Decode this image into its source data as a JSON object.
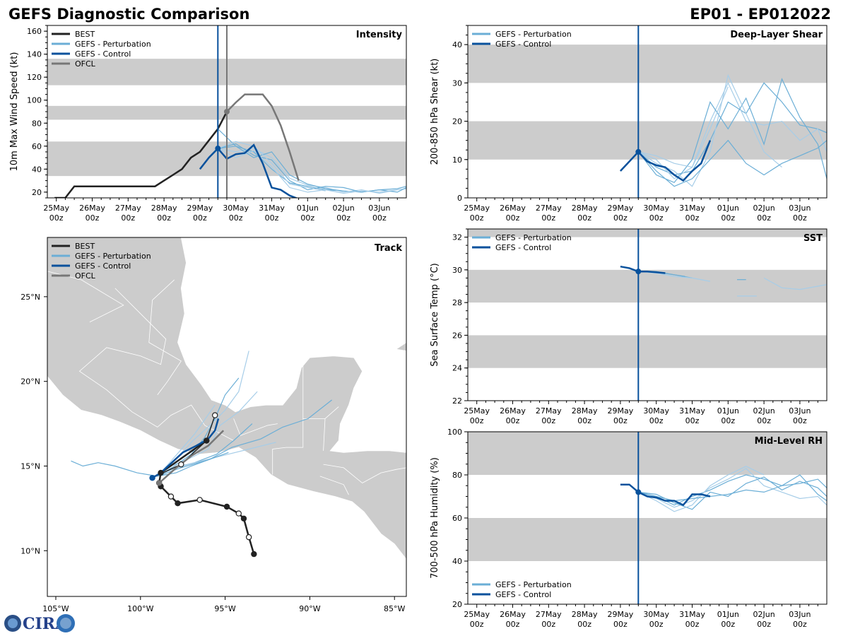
{
  "header": {
    "title_left": "GEFS Diagnostic Comparison",
    "title_right": "EP01 - EP012022"
  },
  "logo": {
    "text": "CIRA"
  },
  "colors": {
    "best": "#222222",
    "perturbation": "#6baed6",
    "perturbation_light": "#a6cde8",
    "control": "#08519c",
    "ofcl": "#777777",
    "band": "#cccccc",
    "land": "#cccccc"
  },
  "time_axis": {
    "ticks": [
      0,
      1,
      2,
      3,
      4,
      5,
      6,
      7,
      8,
      9
    ],
    "tick_date": [
      "25May",
      "26May",
      "27May",
      "28May",
      "29May",
      "30May",
      "31May",
      "01Jun",
      "02Jun",
      "03Jun"
    ],
    "tick_hour": [
      "00z",
      "00z",
      "00z",
      "00z",
      "00z",
      "00z",
      "00z",
      "00z",
      "00z",
      "00z"
    ],
    "range": [
      -0.25,
      9.75
    ],
    "init_day": 4.5,
    "ofcl_line_day": 4.75
  },
  "chart_data": [
    {
      "id": "intensity",
      "type": "line",
      "title": "Intensity",
      "ylabel": "10m Max Wind Speed (kt)",
      "ylim": [
        15,
        165
      ],
      "yticks": [
        20,
        40,
        60,
        80,
        100,
        120,
        140,
        160
      ],
      "bands": [
        [
          34,
          64
        ],
        [
          83,
          95
        ],
        [
          113,
          136
        ]
      ],
      "legend": [
        "BEST",
        "GEFS - Perturbation",
        "GEFS - Control",
        "OFCL"
      ],
      "best": {
        "x": [
          -0.05,
          0.25,
          0.5,
          1,
          1.5,
          2,
          2.5,
          2.75,
          3,
          3.25,
          3.5,
          3.75,
          4,
          4.25,
          4.5,
          4.75
        ],
        "y": [
          15,
          15,
          25,
          25,
          25,
          25,
          25,
          25,
          30,
          35,
          40,
          50,
          55,
          65,
          75,
          90
        ]
      },
      "control": {
        "x": [
          4,
          4.25,
          4.5,
          4.75,
          5,
          5.25,
          5.5,
          5.75,
          6,
          6.25,
          6.5,
          6.75
        ],
        "y": [
          40,
          50,
          58,
          49,
          53,
          54,
          61,
          45,
          24,
          22,
          17,
          14
        ]
      },
      "ofcl": {
        "x": [
          4.75,
          5,
          5.25,
          5.5,
          5.75,
          6,
          6.25,
          6.5,
          6.75
        ],
        "y": [
          90,
          98,
          105,
          105,
          105,
          95,
          78,
          55,
          30
        ]
      },
      "perturbation": [
        {
          "x": [
            4.5,
            5,
            5.5,
            6,
            6.5,
            7,
            7.5,
            8,
            8.5,
            9,
            9.5,
            9.75
          ],
          "y": [
            58,
            60,
            55,
            40,
            28,
            25,
            22,
            21,
            20,
            22,
            23,
            25
          ]
        },
        {
          "x": [
            4.5,
            5,
            5.5,
            6,
            6.5,
            7,
            7.5,
            8,
            8.5,
            9,
            9.5,
            9.75
          ],
          "y": [
            58,
            55,
            58,
            50,
            32,
            26,
            24,
            20,
            22,
            19,
            22,
            23
          ]
        },
        {
          "x": [
            4.5,
            5,
            5.5,
            6,
            6.5,
            7,
            7.5,
            8,
            8.5,
            9,
            9.5,
            9.75
          ],
          "y": [
            58,
            62,
            52,
            48,
            30,
            22,
            25,
            24,
            20,
            22,
            20,
            24
          ]
        },
        {
          "x": [
            4.5,
            5,
            5.5,
            6,
            6.5,
            7,
            7.5,
            8,
            8.5,
            9,
            9.5
          ],
          "y": [
            58,
            50,
            56,
            42,
            24,
            20,
            22,
            19,
            21,
            20,
            22
          ]
        },
        {
          "x": [
            4.5,
            5,
            5.5,
            6,
            6.5,
            7,
            7.5,
            8
          ],
          "y": [
            75,
            60,
            50,
            55,
            35,
            27,
            23,
            21
          ]
        },
        {
          "x": [
            4.5,
            5,
            5.5,
            6,
            6.5,
            7,
            7.5
          ],
          "y": [
            58,
            64,
            60,
            45,
            27,
            24,
            21
          ]
        }
      ]
    },
    {
      "id": "shear",
      "type": "line",
      "title": "Deep-Layer Shear",
      "ylabel": "200-850 hPa Shear (kt)",
      "ylim": [
        0,
        45
      ],
      "yticks": [
        0,
        10,
        20,
        30,
        40
      ],
      "bands": [
        [
          10,
          20
        ],
        [
          30,
          40
        ]
      ],
      "legend": [
        "GEFS - Perturbation",
        "GEFS - Control"
      ],
      "control": {
        "x": [
          4,
          4.25,
          4.5,
          4.75,
          5,
          5.25,
          5.5,
          5.75,
          6,
          6.25,
          6.5
        ],
        "y": [
          7,
          9.5,
          12,
          9.5,
          8.5,
          8,
          6,
          4.5,
          7,
          9,
          15
        ]
      },
      "perturbation": [
        {
          "x": [
            4.5,
            5,
            5.5,
            6,
            6.5,
            7,
            7.5,
            8,
            8.5,
            9,
            9.5,
            9.75
          ],
          "y": [
            12,
            8,
            6,
            7,
            15,
            25,
            22,
            30,
            25,
            19,
            18,
            17
          ]
        },
        {
          "x": [
            4.5,
            5,
            5.5,
            6,
            6.5,
            7,
            7.5,
            8,
            8.5,
            9,
            9.5,
            9.75
          ],
          "y": [
            12,
            10,
            5,
            8,
            20,
            30,
            20,
            19,
            20,
            15,
            18,
            12
          ]
        },
        {
          "x": [
            4.5,
            5,
            5.5,
            6,
            6.5,
            7,
            7.5,
            8,
            8.5,
            9,
            9.5,
            9.75
          ],
          "y": [
            12,
            6,
            4,
            10,
            25,
            18,
            26,
            14,
            31,
            21,
            14,
            5
          ]
        },
        {
          "x": [
            4.5,
            5,
            5.5,
            6,
            6.5,
            7,
            7.5,
            8,
            8.5
          ],
          "y": [
            12,
            9,
            7,
            3,
            12,
            32,
            22,
            12,
            8
          ]
        },
        {
          "x": [
            4.5,
            5,
            5.5,
            6,
            6.5,
            7,
            7.5,
            8,
            8.5,
            9,
            9.5,
            9.75
          ],
          "y": [
            12,
            7,
            3,
            5,
            10,
            15,
            9,
            6,
            9,
            11,
            13,
            15
          ]
        },
        {
          "x": [
            4.5,
            5,
            5.5,
            6,
            6.5,
            7
          ],
          "y": [
            12,
            11,
            9,
            8,
            18,
            29
          ]
        }
      ]
    },
    {
      "id": "track",
      "type": "line",
      "title": "Track",
      "xlabel": "",
      "ylabel": "",
      "lon_range": [
        -105.5,
        -84.3
      ],
      "lat_range": [
        7.3,
        28.5
      ],
      "lon_ticks": [
        -105,
        -100,
        -95,
        -90,
        -85
      ],
      "lon_tick_labels": [
        "105°W",
        "100°W",
        "95°W",
        "90°W",
        "85°W"
      ],
      "lat_ticks": [
        10,
        15,
        20,
        25
      ],
      "lat_tick_labels": [
        "10°N",
        "15°N",
        "20°N",
        "25°N"
      ],
      "legend": [
        "BEST",
        "GEFS - Perturbation",
        "GEFS - Control",
        "OFCL"
      ],
      "best": {
        "lon": [
          -93.3,
          -93.6,
          -93.9,
          -94.2,
          -94.9,
          -96.5,
          -97.8,
          -98.2,
          -98.8,
          -98.9,
          -98.8,
          -96.1
        ],
        "lat": [
          9.8,
          10.8,
          11.9,
          12.2,
          12.6,
          13.0,
          12.8,
          13.2,
          13.8,
          14.0,
          14.6,
          16.5
        ],
        "filled": [
          true,
          false,
          true,
          false,
          true,
          false,
          true,
          false,
          true,
          false,
          true,
          true
        ]
      },
      "best_tail": {
        "lon": [
          -99.1,
          -97.6,
          -96.1,
          -95.6
        ],
        "lat": [
          14.4,
          15.1,
          16.5,
          18.0
        ]
      },
      "control": {
        "lon": [
          -99.3,
          -98.8,
          -97.5,
          -96.7,
          -96.0,
          -95.6,
          -95.4
        ],
        "lat": [
          14.3,
          14.6,
          15.8,
          16.2,
          16.6,
          17.1,
          17.8
        ]
      },
      "ofcl": {
        "lon": [
          -98.9,
          -98.0,
          -97.0,
          -96.0,
          -95.1
        ],
        "lat": [
          14.0,
          14.8,
          15.6,
          16.2,
          17.1
        ]
      },
      "perturbation": [
        {
          "lon": [
            -99.0,
            -98.0,
            -97.0,
            -96.2,
            -95.6,
            -95.0,
            -94.2
          ],
          "lat": [
            14.4,
            15.0,
            15.7,
            16.7,
            17.8,
            19.2,
            20.2
          ]
        },
        {
          "lon": [
            -99.1,
            -98.2,
            -97.0,
            -96.0,
            -95.3,
            -94.2,
            -93.1
          ],
          "lat": [
            14.4,
            15.0,
            15.5,
            16.0,
            17.4,
            18.2,
            19.4
          ]
        },
        {
          "lon": [
            -99.0,
            -98.0,
            -96.8,
            -95.5,
            -94.5,
            -93.4
          ],
          "lat": [
            14.4,
            14.9,
            15.2,
            15.7,
            16.5,
            17.5
          ]
        },
        {
          "lon": [
            -99.0,
            -98.4,
            -97.5,
            -96.4,
            -95.2,
            -93.6,
            -92.0
          ],
          "lat": [
            14.4,
            14.7,
            15.0,
            15.3,
            15.6,
            16.0,
            16.4
          ]
        },
        {
          "lon": [
            -99.0,
            -97.9,
            -97.0,
            -95.9,
            -94.8
          ],
          "lat": [
            14.4,
            14.6,
            15.0,
            15.4,
            15.8
          ]
        },
        {
          "lon": [
            -99.0,
            -98.1,
            -96.8,
            -95.6
          ],
          "lat": [
            14.4,
            15.4,
            16.9,
            18.6
          ]
        },
        {
          "lon": [
            -99.0,
            -97.6,
            -95.9,
            -94.6,
            -92.9,
            -91.6,
            -90.1,
            -88.7
          ],
          "lat": [
            14.4,
            14.9,
            15.4,
            16.1,
            16.6,
            17.3,
            17.8,
            18.9
          ]
        },
        {
          "lon": [
            -99.0,
            -98.0,
            -96.9,
            -95.8,
            -95.0,
            -94.2,
            -93.6
          ],
          "lat": [
            14.4,
            15.3,
            16.5,
            17.5,
            18.3,
            19.4,
            21.8
          ]
        },
        {
          "lon": [
            -99.0,
            -100.2,
            -101.5,
            -102.5,
            -103.4,
            -104.1
          ],
          "lat": [
            14.4,
            14.6,
            15.0,
            15.2,
            15.0,
            15.3
          ]
        }
      ]
    },
    {
      "id": "sst",
      "type": "line",
      "title": "SST",
      "ylabel": "Sea Surface Temp (°C)",
      "ylim": [
        22,
        32.5
      ],
      "yticks": [
        22,
        24,
        26,
        28,
        30,
        32
      ],
      "bands": [
        [
          24,
          26
        ],
        [
          28,
          30
        ],
        [
          32,
          32.5
        ]
      ],
      "legend": [
        "GEFS - Perturbation",
        "GEFS - Control"
      ],
      "control": {
        "x": [
          4,
          4.25,
          4.5,
          4.75,
          5,
          5.25
        ],
        "y": [
          30.2,
          30.1,
          29.9,
          29.9,
          29.85,
          29.8
        ]
      },
      "perturbation": [
        {
          "x": [
            4.5,
            5,
            5.5,
            6
          ],
          "y": [
            29.9,
            29.9,
            29.7,
            29.5
          ]
        },
        {
          "x": [
            4.5,
            5,
            5.5,
            6,
            6.5
          ],
          "y": [
            29.9,
            29.8,
            29.6,
            29.5,
            29.3
          ]
        },
        {
          "x": [
            4.5,
            5,
            5.5,
            5.8
          ],
          "y": [
            29.9,
            29.85,
            29.7,
            29.6
          ]
        },
        {
          "x": [
            8,
            8.5,
            9,
            9.5,
            9.75
          ],
          "y": [
            29.5,
            28.9,
            28.8,
            29.0,
            29.1
          ]
        },
        {
          "x": [
            7.25,
            7.5
          ],
          "y": [
            29.4,
            29.4
          ]
        },
        {
          "x": [
            7.25,
            7.8
          ],
          "y": [
            28.4,
            28.4
          ]
        }
      ]
    },
    {
      "id": "rh",
      "type": "line",
      "title": "Mid-Level RH",
      "ylabel": "700-500 hPa Humidity (%)",
      "ylim": [
        20,
        100
      ],
      "yticks": [
        20,
        40,
        60,
        80,
        100
      ],
      "bands": [
        [
          40,
          60
        ],
        [
          80,
          100
        ]
      ],
      "legend": [
        "GEFS - Perturbation",
        "GEFS - Control"
      ],
      "control": {
        "x": [
          4,
          4.25,
          4.5,
          4.75,
          5,
          5.25,
          5.5,
          5.75,
          6,
          6.25,
          6.5
        ],
        "y": [
          75.5,
          75.5,
          72,
          70,
          69.5,
          68,
          68,
          66,
          71,
          71,
          70
        ]
      },
      "perturbation": [
        {
          "x": [
            4.5,
            5,
            5.5,
            6,
            6.5,
            7,
            7.5,
            8,
            8.5,
            9,
            9.5,
            9.75
          ],
          "y": [
            72,
            70,
            66,
            70,
            73,
            77,
            80,
            78,
            75,
            80,
            71,
            68
          ]
        },
        {
          "x": [
            4.5,
            5,
            5.5,
            6,
            6.5,
            7,
            7.5,
            8,
            8.5,
            9,
            9.5,
            9.75
          ],
          "y": [
            72,
            69,
            65,
            68,
            74,
            78,
            83,
            75,
            72,
            69,
            70,
            66
          ]
        },
        {
          "x": [
            4.5,
            5,
            5.5,
            6,
            6.5,
            7,
            7.5,
            8,
            8.5,
            9,
            9.5,
            9.75
          ],
          "y": [
            72,
            71,
            67,
            64,
            72,
            70,
            76,
            79,
            73,
            77,
            74,
            70
          ]
        },
        {
          "x": [
            4.5,
            5,
            5.5,
            6,
            6.5,
            7,
            7.5,
            8
          ],
          "y": [
            72,
            68,
            63,
            66,
            75,
            80,
            84,
            80
          ]
        },
        {
          "x": [
            4.5,
            5,
            5.5,
            6,
            6.5,
            7,
            7.5,
            8,
            8.5,
            9,
            9.5,
            9.75
          ],
          "y": [
            72,
            70,
            68,
            69,
            70,
            71,
            73,
            72,
            75,
            76,
            78,
            74
          ]
        }
      ]
    }
  ]
}
